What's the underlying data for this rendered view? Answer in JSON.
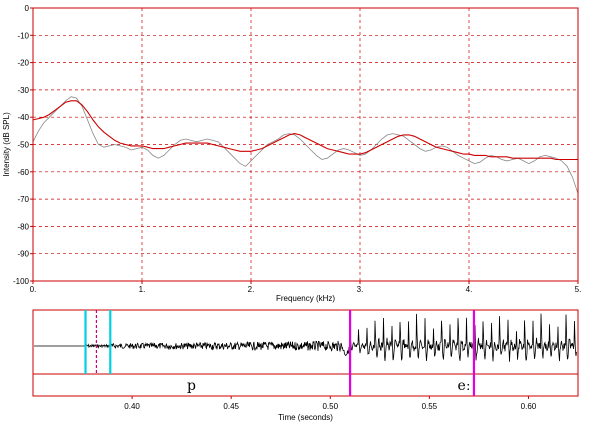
{
  "chart_data": [
    {
      "type": "line",
      "xlabel": "Frequency (kHz)",
      "ylabel": "Intensity (dB SPL)",
      "xlim": [
        0,
        5
      ],
      "ylim": [
        -100,
        0
      ],
      "x_ticks": [
        "0.",
        "1.",
        "2.",
        "3.",
        "4.",
        "5."
      ],
      "y_ticks": [
        "0",
        "-10",
        "-20",
        "-30",
        "-40",
        "-50",
        "-60",
        "-70",
        "-80",
        "-90",
        "-100"
      ],
      "grid": true,
      "series": [
        {
          "color": "#888888",
          "x": [
            0,
            0.05,
            0.1,
            0.15,
            0.2,
            0.25,
            0.3,
            0.35,
            0.4,
            0.45,
            0.5,
            0.55,
            0.6,
            0.65,
            0.7,
            0.75,
            0.8,
            0.85,
            0.9,
            0.95,
            1.0,
            1.05,
            1.1,
            1.15,
            1.2,
            1.25,
            1.3,
            1.35,
            1.4,
            1.45,
            1.5,
            1.55,
            1.6,
            1.65,
            1.7,
            1.75,
            1.8,
            1.85,
            1.9,
            1.95,
            2.0,
            2.05,
            2.1,
            2.15,
            2.2,
            2.25,
            2.3,
            2.35,
            2.4,
            2.45,
            2.5,
            2.55,
            2.6,
            2.65,
            2.7,
            2.75,
            2.8,
            2.85,
            2.9,
            2.95,
            3.0,
            3.05,
            3.1,
            3.15,
            3.2,
            3.25,
            3.3,
            3.35,
            3.4,
            3.45,
            3.5,
            3.55,
            3.6,
            3.65,
            3.7,
            3.75,
            3.8,
            3.85,
            3.9,
            3.95,
            4.0,
            4.05,
            4.1,
            4.15,
            4.2,
            4.25,
            4.3,
            4.35,
            4.4,
            4.45,
            4.5,
            4.55,
            4.6,
            4.65,
            4.7,
            4.75,
            4.8,
            4.85,
            4.9,
            4.95,
            5.0
          ],
          "y": [
            -49,
            -45,
            -42,
            -40,
            -38,
            -36,
            -34,
            -32.5,
            -33,
            -36,
            -41,
            -46,
            -50,
            -51,
            -50.5,
            -50,
            -50.5,
            -51,
            -52,
            -51.5,
            -51,
            -52,
            -54,
            -55,
            -54,
            -52,
            -50,
            -48.5,
            -48,
            -48.5,
            -49,
            -48.5,
            -48,
            -48.5,
            -49,
            -51,
            -53,
            -55,
            -57,
            -58,
            -56,
            -54,
            -52,
            -50,
            -49,
            -48,
            -46.5,
            -46,
            -46.5,
            -48,
            -50,
            -52,
            -54,
            -55.5,
            -55,
            -53.5,
            -52,
            -51.5,
            -52,
            -53,
            -54,
            -53.5,
            -52,
            -50,
            -48,
            -46.5,
            -46,
            -46.5,
            -47,
            -48.5,
            -50,
            -51.5,
            -52.5,
            -52,
            -51,
            -50.5,
            -51,
            -52.5,
            -54,
            -55,
            -56,
            -57,
            -56.5,
            -55,
            -54,
            -54.5,
            -55.5,
            -56,
            -55.5,
            -55,
            -56,
            -57,
            -56,
            -54.5,
            -54,
            -54.5,
            -55,
            -56,
            -58,
            -62,
            -68
          ]
        },
        {
          "color": "#cc0000",
          "x": [
            0,
            0.05,
            0.1,
            0.15,
            0.2,
            0.25,
            0.3,
            0.35,
            0.4,
            0.45,
            0.5,
            0.55,
            0.6,
            0.65,
            0.7,
            0.75,
            0.8,
            0.85,
            0.9,
            0.95,
            1.0,
            1.05,
            1.1,
            1.15,
            1.2,
            1.25,
            1.3,
            1.35,
            1.4,
            1.45,
            1.5,
            1.55,
            1.6,
            1.65,
            1.7,
            1.75,
            1.8,
            1.85,
            1.9,
            1.95,
            2.0,
            2.05,
            2.1,
            2.15,
            2.2,
            2.25,
            2.3,
            2.35,
            2.4,
            2.45,
            2.5,
            2.55,
            2.6,
            2.65,
            2.7,
            2.75,
            2.8,
            2.85,
            2.9,
            2.95,
            3.0,
            3.05,
            3.1,
            3.15,
            3.2,
            3.25,
            3.3,
            3.35,
            3.4,
            3.45,
            3.5,
            3.55,
            3.6,
            3.65,
            3.7,
            3.75,
            3.8,
            3.85,
            3.9,
            3.95,
            4.0,
            4.05,
            4.1,
            4.15,
            4.2,
            4.25,
            4.3,
            4.35,
            4.4,
            4.45,
            4.5,
            4.55,
            4.6,
            4.65,
            4.7,
            4.75,
            4.8,
            4.85,
            4.9,
            4.95,
            5.0
          ],
          "y": [
            -41,
            -40.5,
            -40,
            -39,
            -37.5,
            -36,
            -34.5,
            -34,
            -34,
            -35.5,
            -38,
            -41,
            -43.5,
            -45.5,
            -47,
            -48.5,
            -49.5,
            -50,
            -50.5,
            -50.5,
            -50.5,
            -51,
            -51.5,
            -51.5,
            -51.5,
            -51,
            -50.5,
            -50,
            -49.5,
            -49.5,
            -49.5,
            -49.5,
            -49.5,
            -50,
            -50.5,
            -51,
            -51.5,
            -52,
            -52.5,
            -52.5,
            -52.5,
            -52,
            -51.5,
            -50.5,
            -49.5,
            -48.5,
            -47.5,
            -46.5,
            -46,
            -46.5,
            -47.5,
            -48.5,
            -49.5,
            -50.5,
            -51.5,
            -52,
            -52.5,
            -53,
            -53.5,
            -53.5,
            -53.5,
            -53,
            -52,
            -51,
            -50,
            -49,
            -48,
            -47,
            -46.5,
            -46.5,
            -47,
            -48,
            -49,
            -50,
            -51,
            -51.5,
            -52,
            -52.5,
            -53,
            -53.5,
            -53.5,
            -54,
            -54,
            -54,
            -54.5,
            -54.5,
            -54.5,
            -54.5,
            -55,
            -55,
            -55,
            -55,
            -55,
            -55,
            -55,
            -55,
            -55.5,
            -55.5,
            -55.5,
            -55.5,
            -55.5
          ]
        }
      ]
    },
    {
      "type": "line",
      "xlabel": "Time (seconds)",
      "ylabel": "",
      "xlim": [
        0.35,
        0.625
      ],
      "x_ticks": [
        "0.40",
        "0.45",
        "0.50",
        "0.55",
        "0.60"
      ],
      "markers": [
        {
          "time": 0.3765,
          "color": "#00d0e0"
        },
        {
          "time": 0.389,
          "color": "#00d0e0"
        },
        {
          "time": 0.382,
          "color": "#d0007a"
        },
        {
          "time": 0.51,
          "color": "#e000e0"
        },
        {
          "time": 0.5725,
          "color": "#e000e0"
        }
      ],
      "segments": [
        {
          "label": "p",
          "start": 0.35,
          "end": 0.51
        },
        {
          "label": "eː",
          "start": 0.51,
          "end": 0.625
        }
      ]
    }
  ]
}
